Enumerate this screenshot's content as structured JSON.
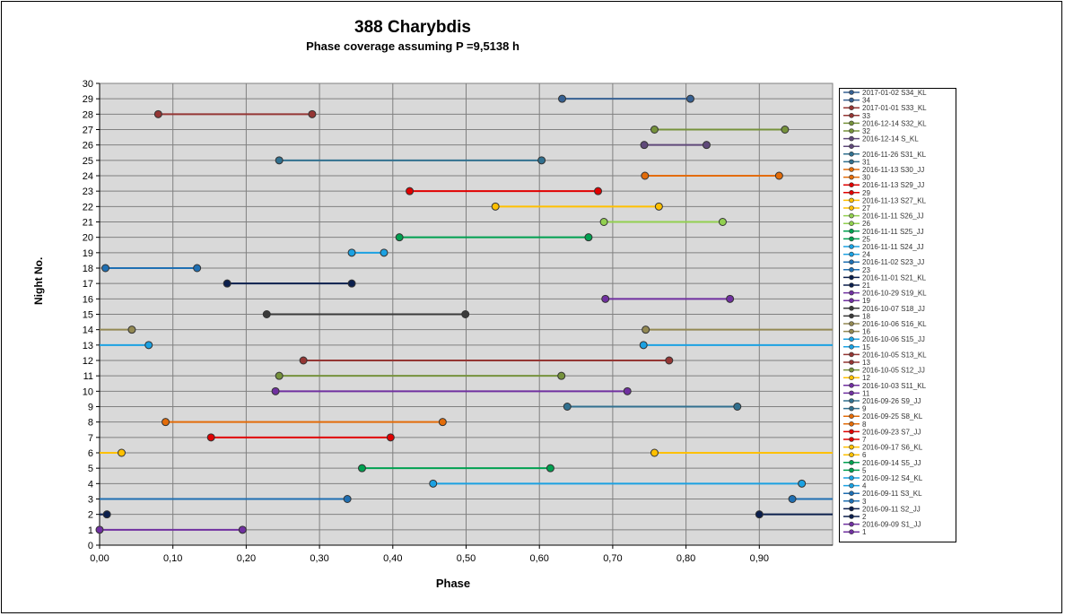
{
  "chart_data": {
    "type": "line",
    "title": "388 Charybdis",
    "subtitle": "Phase coverage assuming P =9,5138 h",
    "xlabel": "Phase",
    "ylabel": "Night No.",
    "xlim": [
      0,
      1
    ],
    "ylim": [
      0,
      30
    ],
    "x_ticks": [
      "0,00",
      "0,10",
      "0,20",
      "0,30",
      "0,40",
      "0,50",
      "0,60",
      "0,70",
      "0,80",
      "0,90"
    ],
    "y_ticks": [
      "0",
      "1",
      "2",
      "3",
      "4",
      "5",
      "6",
      "7",
      "8",
      "9",
      "10",
      "11",
      "12",
      "13",
      "14",
      "15",
      "16",
      "17",
      "18",
      "19",
      "20",
      "21",
      "22",
      "23",
      "24",
      "25",
      "26",
      "27",
      "28",
      "29",
      "30"
    ],
    "grid": true,
    "plot_background": "#d9d9d9",
    "legend_position": "right",
    "series": [
      {
        "name": "2016-09-09  S1_JJ",
        "night": 1,
        "color": "#7030a0",
        "segments": [
          [
            0.0,
            0.195
          ]
        ]
      },
      {
        "name": "2016-09-11  S2_JJ",
        "night": 2,
        "color": "#0b1f4d",
        "segments": [
          [
            0.0,
            0.01
          ],
          [
            0.9,
            1.0
          ]
        ]
      },
      {
        "name": "2016-09-11  S3_KL",
        "night": 3,
        "color": "#1f6fb2",
        "segments": [
          [
            0.0,
            0.338
          ],
          [
            0.945,
            1.0
          ]
        ]
      },
      {
        "name": "2016-09-12  S4_KL",
        "night": 4,
        "color": "#1ba1e2",
        "segments": [
          [
            0.455,
            0.958
          ]
        ]
      },
      {
        "name": "2016-09-14  S5_JJ",
        "night": 5,
        "color": "#00a050",
        "segments": [
          [
            0.358,
            0.615
          ]
        ]
      },
      {
        "name": "2016-09-17  S6_KL",
        "night": 6,
        "color": "#ffc000",
        "segments": [
          [
            0.0,
            0.03
          ],
          [
            0.757,
            1.0
          ]
        ]
      },
      {
        "name": "2016-09-23  S7_JJ",
        "night": 7,
        "color": "#e00000",
        "segments": [
          [
            0.152,
            0.397
          ]
        ]
      },
      {
        "name": "2016-09-25  S8_KL",
        "night": 8,
        "color": "#e36c09",
        "segments": [
          [
            0.09,
            0.468
          ]
        ]
      },
      {
        "name": "2016-09-26  S9_JJ",
        "night": 9,
        "color": "#31708f",
        "segments": [
          [
            0.638,
            0.87
          ]
        ]
      },
      {
        "name": "2016-10-03  S11_KL",
        "night": 10,
        "color": "#7030a0",
        "segments": [
          [
            0.24,
            0.72
          ]
        ]
      },
      {
        "name": "2016-10-05  S12_JJ",
        "night": 11,
        "color": "#76923c",
        "segments": [
          [
            0.245,
            0.63
          ]
        ]
      },
      {
        "name": "2016-10-05  S13_KL",
        "night": 12,
        "color": "#943634",
        "segments": [
          [
            0.278,
            0.777
          ]
        ]
      },
      {
        "name": "2016-10-06  S15_JJ",
        "night": 13,
        "color": "#1ba1e2",
        "segments": [
          [
            0.0,
            0.067
          ],
          [
            0.742,
            1.0
          ]
        ]
      },
      {
        "name": "2016-10-06  S16_KL",
        "night": 14,
        "color": "#938953",
        "segments": [
          [
            0.0,
            0.044
          ],
          [
            0.745,
            1.0
          ]
        ]
      },
      {
        "name": "2016-10-07  S18_JJ",
        "night": 15,
        "color": "#3a3a3a",
        "segments": [
          [
            0.228,
            0.499
          ]
        ]
      },
      {
        "name": "2016-10-29  S19_KL",
        "night": 16,
        "color": "#7030a0",
        "segments": [
          [
            0.69,
            0.86
          ]
        ]
      },
      {
        "name": "2016-11-01  S21_KL",
        "night": 17,
        "color": "#0b1f4d",
        "segments": [
          [
            0.174,
            0.344
          ]
        ]
      },
      {
        "name": "2016-11-02  S23_JJ",
        "night": 18,
        "color": "#1f6fb2",
        "segments": [
          [
            0.008,
            0.133
          ]
        ]
      },
      {
        "name": "2016-11-11  S24_JJ",
        "night": 19,
        "color": "#1ba1e2",
        "segments": [
          [
            0.344,
            0.388
          ]
        ]
      },
      {
        "name": "2016-11-11  S25_JJ",
        "night": 20,
        "color": "#00a050",
        "segments": [
          [
            0.409,
            0.667
          ]
        ]
      },
      {
        "name": "2016-11-11  S26_JJ",
        "night": 21,
        "color": "#92d050",
        "segments": [
          [
            0.688,
            0.85
          ]
        ]
      },
      {
        "name": "2016-11-13  S27_KL",
        "night": 22,
        "color": "#ffc000",
        "segments": [
          [
            0.54,
            0.763
          ]
        ]
      },
      {
        "name": "2016-11-13  S29_JJ",
        "night": 23,
        "color": "#e00000",
        "segments": [
          [
            0.423,
            0.68
          ]
        ]
      },
      {
        "name": "2016-11-13  S30_JJ",
        "night": 24,
        "color": "#e36c09",
        "segments": [
          [
            0.744,
            0.927
          ]
        ]
      },
      {
        "name": "2016-11-26  S31_KL",
        "night": 25,
        "color": "#31708f",
        "segments": [
          [
            0.245,
            0.603
          ]
        ]
      },
      {
        "name": "2016-12-14  S_KL",
        "night": 26,
        "color": "#5f497a",
        "segments": [
          [
            0.743,
            0.828
          ]
        ]
      },
      {
        "name": "2016-12-14  S32_KL",
        "night": 27,
        "color": "#76923c",
        "segments": [
          [
            0.757,
            0.935
          ]
        ]
      },
      {
        "name": "2017-01-01  S33_KL",
        "night": 28,
        "color": "#943634",
        "segments": [
          [
            0.08,
            0.29
          ]
        ]
      },
      {
        "name": "2017-01-02  S34_KL",
        "night": 29,
        "color": "#366092",
        "segments": [
          [
            0.631,
            0.806
          ]
        ]
      }
    ]
  },
  "legend_items": [
    {
      "label": "2017-01-02  S34_KL",
      "color": "#366092"
    },
    {
      "label": "34",
      "color": "#366092"
    },
    {
      "label": "2017-01-01  S33_KL",
      "color": "#943634"
    },
    {
      "label": "33",
      "color": "#943634"
    },
    {
      "label": "2016-12-14  S32_KL",
      "color": "#76923c"
    },
    {
      "label": "32",
      "color": "#76923c"
    },
    {
      "label": "2016-12-14  S_KL",
      "color": "#5f497a"
    },
    {
      "label": "",
      "color": "#5f497a"
    },
    {
      "label": "2016-11-26  S31_KL",
      "color": "#31708f"
    },
    {
      "label": "31",
      "color": "#31708f"
    },
    {
      "label": "2016-11-13  S30_JJ",
      "color": "#e36c09"
    },
    {
      "label": "30",
      "color": "#e36c09"
    },
    {
      "label": "2016-11-13  S29_JJ",
      "color": "#e00000"
    },
    {
      "label": "29",
      "color": "#e00000"
    },
    {
      "label": "2016-11-13  S27_KL",
      "color": "#ffc000"
    },
    {
      "label": "27",
      "color": "#ffc000"
    },
    {
      "label": "2016-11-11  S26_JJ",
      "color": "#92d050"
    },
    {
      "label": "26",
      "color": "#92d050"
    },
    {
      "label": "2016-11-11  S25_JJ",
      "color": "#00a050"
    },
    {
      "label": "25",
      "color": "#00a050"
    },
    {
      "label": "2016-11-11  S24_JJ",
      "color": "#1ba1e2"
    },
    {
      "label": "24",
      "color": "#1ba1e2"
    },
    {
      "label": "2016-11-02  S23_JJ",
      "color": "#1f6fb2"
    },
    {
      "label": "23",
      "color": "#1f6fb2"
    },
    {
      "label": "2016-11-01  S21_KL",
      "color": "#0b1f4d"
    },
    {
      "label": "21",
      "color": "#0b1f4d"
    },
    {
      "label": "2016-10-29  S19_KL",
      "color": "#7030a0"
    },
    {
      "label": "19",
      "color": "#7030a0"
    },
    {
      "label": "2016-10-07  S18_JJ",
      "color": "#3a3a3a"
    },
    {
      "label": "18",
      "color": "#3a3a3a"
    },
    {
      "label": "2016-10-06  S16_KL",
      "color": "#938953"
    },
    {
      "label": "16",
      "color": "#938953"
    },
    {
      "label": "2016-10-06  S15_JJ",
      "color": "#1ba1e2"
    },
    {
      "label": "15",
      "color": "#1ba1e2"
    },
    {
      "label": "2016-10-05  S13_KL",
      "color": "#943634"
    },
    {
      "label": "13",
      "color": "#943634"
    },
    {
      "label": "2016-10-05  S12_JJ",
      "color": "#76923c"
    },
    {
      "label": "12",
      "color": "#ffc000"
    },
    {
      "label": "2016-10-03  S11_KL",
      "color": "#7030a0"
    },
    {
      "label": "11",
      "color": "#7030a0"
    },
    {
      "label": "2016-09-26  S9_JJ",
      "color": "#31708f"
    },
    {
      "label": "9",
      "color": "#31708f"
    },
    {
      "label": "2016-09-25  S8_KL",
      "color": "#e36c09"
    },
    {
      "label": "8",
      "color": "#e36c09"
    },
    {
      "label": "2016-09-23  S7_JJ",
      "color": "#e00000"
    },
    {
      "label": "7",
      "color": "#e00000"
    },
    {
      "label": "2016-09-17  S6_KL",
      "color": "#ffc000"
    },
    {
      "label": "6",
      "color": "#ffc000"
    },
    {
      "label": "2016-09-14  S5_JJ",
      "color": "#00a050"
    },
    {
      "label": "5",
      "color": "#00a050"
    },
    {
      "label": "2016-09-12  S4_KL",
      "color": "#1ba1e2"
    },
    {
      "label": "4",
      "color": "#1ba1e2"
    },
    {
      "label": "2016-09-11  S3_KL",
      "color": "#1f6fb2"
    },
    {
      "label": "3",
      "color": "#1f6fb2"
    },
    {
      "label": "2016-09-11  S2_JJ",
      "color": "#0b1f4d"
    },
    {
      "label": "2",
      "color": "#0b1f4d"
    },
    {
      "label": "2016-09-09  S1_JJ",
      "color": "#7030a0"
    },
    {
      "label": "1",
      "color": "#7030a0"
    }
  ]
}
